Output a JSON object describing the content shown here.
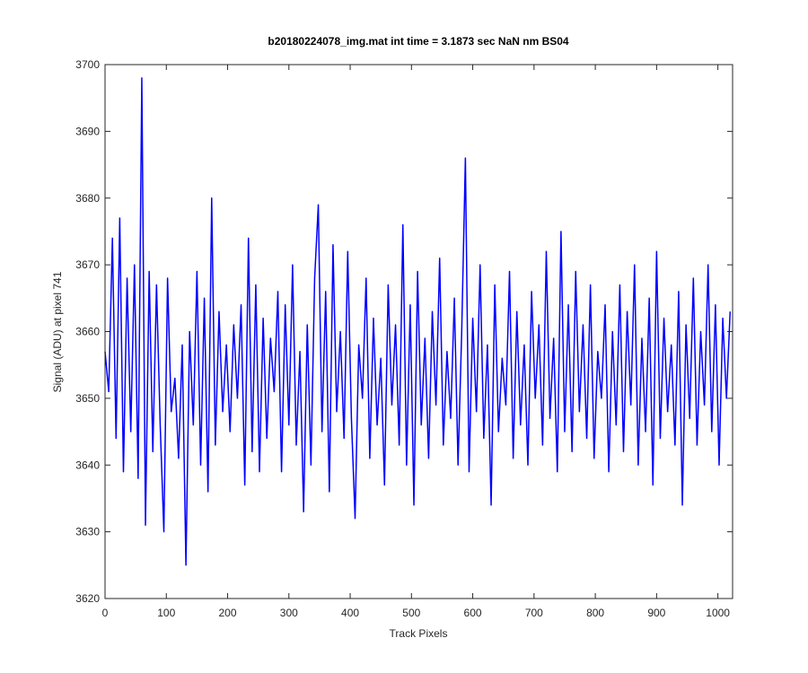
{
  "chart_data": {
    "type": "line",
    "title": "b20180224078_img.mat int time = 3.1873 sec  NaN nm BS04",
    "x_label": "Track Pixels",
    "y_label": "Signal (ADU) at pixel 741",
    "x": [
      0,
      6,
      12,
      18,
      24,
      30,
      36,
      42,
      48,
      54,
      60,
      66,
      72,
      78,
      84,
      90,
      96,
      102,
      108,
      114,
      120,
      126,
      132,
      138,
      144,
      150,
      156,
      162,
      168,
      174,
      180,
      186,
      192,
      198,
      204,
      210,
      216,
      222,
      228,
      234,
      240,
      246,
      252,
      258,
      264,
      270,
      276,
      282,
      288,
      294,
      300,
      306,
      312,
      318,
      324,
      330,
      336,
      342,
      348,
      354,
      360,
      366,
      372,
      378,
      384,
      390,
      396,
      402,
      408,
      414,
      420,
      426,
      432,
      438,
      444,
      450,
      456,
      462,
      468,
      474,
      480,
      486,
      492,
      498,
      504,
      510,
      516,
      522,
      528,
      534,
      540,
      546,
      552,
      558,
      564,
      570,
      576,
      582,
      588,
      594,
      600,
      606,
      612,
      618,
      624,
      630,
      636,
      642,
      648,
      654,
      660,
      666,
      672,
      678,
      684,
      690,
      696,
      702,
      708,
      714,
      720,
      726,
      732,
      738,
      744,
      750,
      756,
      762,
      768,
      774,
      780,
      786,
      792,
      798,
      804,
      810,
      816,
      822,
      828,
      834,
      840,
      846,
      852,
      858,
      864,
      870,
      876,
      882,
      888,
      894,
      900,
      906,
      912,
      918,
      924,
      930,
      936,
      942,
      948,
      954,
      960,
      966,
      972,
      978,
      984,
      990,
      996,
      1002,
      1008,
      1014,
      1020
    ],
    "series": [
      {
        "color": "#0000ff",
        "values": [
          3657,
          3651,
          3674,
          3644,
          3677,
          3639,
          3668,
          3645,
          3670,
          3638,
          3698,
          3631,
          3669,
          3642,
          3667,
          3646,
          3630,
          3668,
          3648,
          3653,
          3641,
          3658,
          3625,
          3660,
          3646,
          3669,
          3640,
          3665,
          3636,
          3680,
          3643,
          3663,
          3648,
          3658,
          3645,
          3661,
          3650,
          3664,
          3637,
          3674,
          3642,
          3667,
          3639,
          3662,
          3644,
          3659,
          3651,
          3666,
          3639,
          3664,
          3646,
          3670,
          3643,
          3657,
          3633,
          3661,
          3640,
          3668,
          3679,
          3645,
          3666,
          3636,
          3673,
          3648,
          3660,
          3644,
          3672,
          3647,
          3632,
          3658,
          3650,
          3668,
          3641,
          3662,
          3646,
          3656,
          3637,
          3667,
          3649,
          3661,
          3643,
          3676,
          3640,
          3664,
          3634,
          3669,
          3646,
          3659,
          3641,
          3663,
          3649,
          3671,
          3643,
          3657,
          3647,
          3665,
          3640,
          3660,
          3686,
          3639,
          3662,
          3648,
          3670,
          3644,
          3658,
          3634,
          3667,
          3645,
          3656,
          3649,
          3669,
          3641,
          3663,
          3646,
          3658,
          3640,
          3666,
          3650,
          3661,
          3643,
          3672,
          3647,
          3659,
          3639,
          3675,
          3645,
          3664,
          3642,
          3669,
          3648,
          3661,
          3644,
          3667,
          3641,
          3657,
          3650,
          3664,
          3639,
          3660,
          3646,
          3667,
          3642,
          3663,
          3649,
          3670,
          3640,
          3659,
          3645,
          3665,
          3637,
          3672,
          3644,
          3662,
          3648,
          3658,
          3643,
          3666,
          3634,
          3661,
          3647,
          3668,
          3643,
          3660,
          3649,
          3670,
          3645,
          3664,
          3640,
          3662,
          3650,
          3663
        ]
      }
    ],
    "xlim": [
      0,
      1024
    ],
    "ylim": [
      3620,
      3700
    ],
    "xticks": [
      0,
      100,
      200,
      300,
      400,
      500,
      600,
      700,
      800,
      900,
      1000
    ],
    "yticks": [
      3620,
      3630,
      3640,
      3650,
      3660,
      3670,
      3680,
      3690,
      3700
    ]
  }
}
